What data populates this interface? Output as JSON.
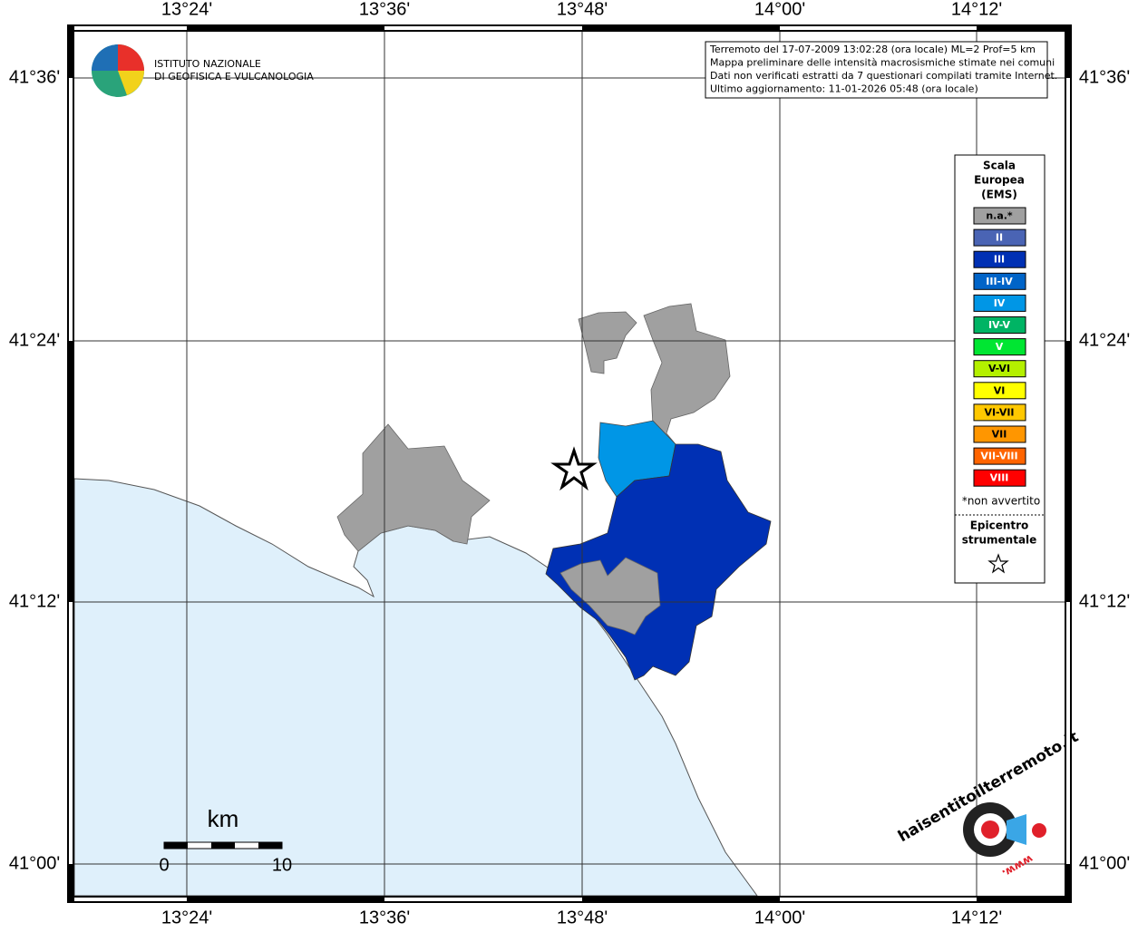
{
  "axes": {
    "top": [
      "13°24'",
      "13°36'",
      "13°48'",
      "14°00'",
      "14°12'"
    ],
    "left": [
      "41°36'",
      "41°24'",
      "41°12'",
      "41°00'"
    ]
  },
  "info": [
    "Terremoto del 17-07-2009 13:02:28 (ora locale) ML=2 Prof=5 km",
    "Mappa preliminare delle intensità macrosismiche stimate nei comuni",
    "Dati non verificati estratti da 7 questionari compilati tramite Internet.",
    "Ultimo aggiornamento: 11-01-2026 05:48 (ora locale)"
  ],
  "logo": [
    "ISTITUTO NAZIONALE",
    "DI GEOFISICA E VULCANOLOGIA"
  ],
  "legend": {
    "title": [
      "Scala",
      "Europea",
      "(EMS)"
    ],
    "items": [
      {
        "label": "n.a.*",
        "color": "#a0a0a0"
      },
      {
        "label": "II",
        "color": "#4a64b4"
      },
      {
        "label": "III",
        "color": "#0030b4"
      },
      {
        "label": "III-IV",
        "color": "#0064c8"
      },
      {
        "label": "IV",
        "color": "#0096e6"
      },
      {
        "label": "IV-V",
        "color": "#00b464"
      },
      {
        "label": "V",
        "color": "#00e632"
      },
      {
        "label": "V-VI",
        "color": "#b4f000"
      },
      {
        "label": "VI",
        "color": "#ffff00"
      },
      {
        "label": "VI-VII",
        "color": "#ffc800"
      },
      {
        "label": "VII",
        "color": "#ff9600"
      },
      {
        "label": "VII-VIII",
        "color": "#ff6400"
      },
      {
        "label": "VIII",
        "color": "#ff0000"
      }
    ],
    "note": "*non avvertito",
    "epicenter": [
      "Epicentro",
      "strumentale"
    ]
  },
  "scale": {
    "unit": "km",
    "ticks": [
      "0",
      "10"
    ]
  },
  "watermark": [
    "haisentitoilterremoto.it",
    "www."
  ]
}
